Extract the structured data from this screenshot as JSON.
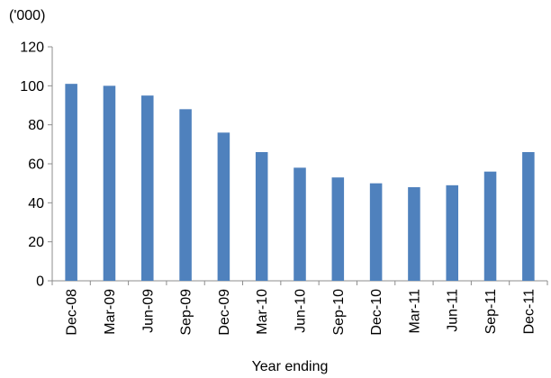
{
  "chart_data": {
    "type": "bar",
    "title": "",
    "unit_label": "('000)",
    "xlabel": "Year ending",
    "ylabel": "",
    "ylim": [
      0,
      120
    ],
    "ytick_values": [
      0,
      20,
      40,
      60,
      80,
      100,
      120
    ],
    "ytick_labels": [
      "0",
      "20",
      "40",
      "60",
      "80",
      "100",
      "120"
    ],
    "categories": [
      "Dec-08",
      "Mar-09",
      "Jun-09",
      "Sep-09",
      "Dec-09",
      "Mar-10",
      "Jun-10",
      "Sep-10",
      "Dec-10",
      "Mar-11",
      "Jun-11",
      "Sep-11",
      "Dec-11"
    ],
    "values": [
      101,
      100,
      95,
      88,
      76,
      66,
      58,
      53,
      50,
      48,
      49,
      56,
      66
    ],
    "bar_color": "#4f81bd",
    "grid": false,
    "legend": "none"
  }
}
